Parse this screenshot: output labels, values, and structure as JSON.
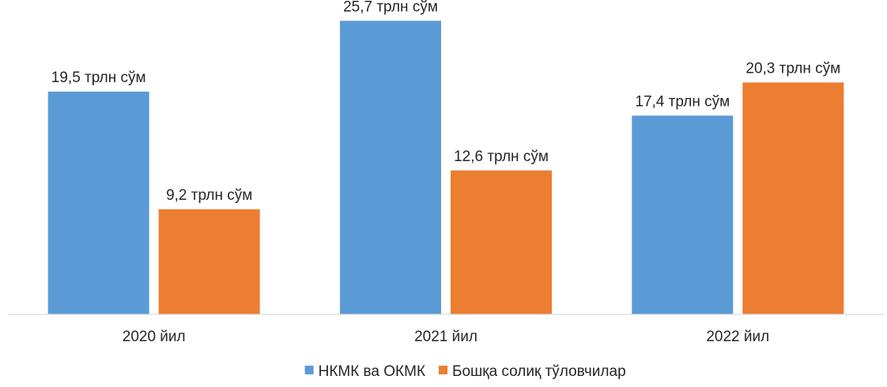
{
  "chart_data": {
    "type": "bar",
    "categories": [
      "2020 йил",
      "2021 йил",
      "2022 йил"
    ],
    "series": [
      {
        "name": "НКМК ва ОКМК",
        "color": "#5b9bd5",
        "values": [
          19.5,
          25.7,
          17.4
        ],
        "labels": [
          "19,5 трлн сўм",
          "25,7 трлн сўм",
          "17,4 трлн сўм"
        ]
      },
      {
        "name": "Бошқа солиқ тўловчилар",
        "color": "#ed7d31",
        "values": [
          9.2,
          12.6,
          20.3
        ],
        "labels": [
          "9,2 трлн сўм",
          "12,6 трлн сўм",
          "20,3 трлн сўм"
        ]
      }
    ],
    "title": "",
    "xlabel": "",
    "ylabel": "",
    "ylim": [
      0,
      26
    ],
    "grid": false,
    "legend": "bottom",
    "axis_color": "#d9d9d9"
  }
}
